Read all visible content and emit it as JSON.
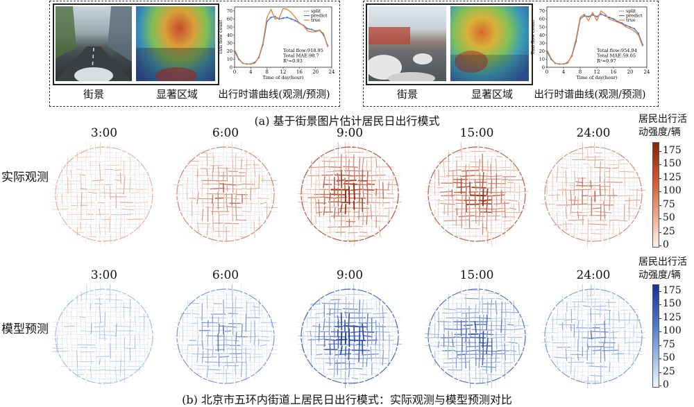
{
  "panel_a": {
    "caption": "(a) 基于街景图片估计居民日出行模式",
    "labels": {
      "street": "街景",
      "salient": "显著区域",
      "curve": "出行时谱曲线(观测/预测)"
    },
    "charts": [
      {
        "type": "line",
        "xlabel": "Time of day(hour)",
        "ylabel": "Taxi flow count",
        "xticks": [
          0,
          4,
          8,
          12,
          16,
          20,
          24
        ],
        "yticks": [
          0,
          10,
          20,
          30,
          40,
          50,
          60,
          70
        ],
        "xlim": [
          0,
          24
        ],
        "ylim": [
          0,
          75
        ],
        "legend": [
          "split",
          "predict",
          "true"
        ],
        "stats": [
          "Total flow:918.95",
          "Total MAE:98.7",
          "R²=0.93"
        ],
        "chart_data": {
          "type": "line",
          "x": [
            0,
            1,
            2,
            3,
            4,
            5,
            6,
            7,
            8,
            9,
            10,
            11,
            12,
            13,
            14,
            15,
            16,
            17,
            18,
            19,
            20,
            21,
            22,
            23
          ],
          "series": [
            {
              "name": "predict",
              "values": [
                20,
                10,
                5,
                4,
                4,
                6,
                12,
                28,
                57,
                62,
                63,
                60,
                61,
                62,
                60,
                58,
                55,
                52,
                48,
                47,
                45,
                46,
                40,
                27
              ]
            },
            {
              "name": "true",
              "values": [
                22,
                11,
                5,
                4,
                4,
                5,
                13,
                30,
                62,
                72,
                60,
                61,
                73,
                72,
                68,
                62,
                55,
                52,
                45,
                44,
                44,
                46,
                42,
                25
              ]
            }
          ]
        }
      },
      {
        "type": "line",
        "xlabel": "Time of day(hour)",
        "ylabel": "Taxi flow count",
        "xticks": [
          0,
          4,
          8,
          12,
          16,
          20,
          24
        ],
        "yticks": [
          0,
          10,
          20,
          30,
          40,
          50,
          60,
          70
        ],
        "xlim": [
          0,
          24
        ],
        "ylim": [
          0,
          75
        ],
        "legend": [
          "split",
          "predict",
          "true"
        ],
        "stats": [
          "Total flow:954.94",
          "Total MAE:59.05",
          "R²=0.97"
        ],
        "chart_data": {
          "type": "line",
          "x": [
            0,
            1,
            2,
            3,
            4,
            5,
            6,
            7,
            8,
            9,
            10,
            11,
            12,
            13,
            14,
            15,
            16,
            17,
            18,
            19,
            20,
            21,
            22,
            23
          ],
          "series": [
            {
              "name": "predict",
              "values": [
                20,
                10,
                5,
                4,
                4,
                6,
                14,
                32,
                60,
                64,
                63,
                65,
                63,
                66,
                64,
                62,
                60,
                57,
                55,
                52,
                50,
                48,
                42,
                28
              ]
            },
            {
              "name": "true",
              "values": [
                22,
                11,
                5,
                4,
                4,
                5,
                15,
                35,
                62,
                66,
                58,
                68,
                58,
                70,
                66,
                60,
                58,
                56,
                54,
                50,
                48,
                45,
                40,
                26
              ]
            }
          ]
        }
      }
    ]
  },
  "panel_b": {
    "caption": "(b) 北京市五环内街道上居民日出行模式：实际观测与模型预测对比",
    "times": [
      "3:00",
      "6:00",
      "9:00",
      "15:00",
      "24:00"
    ],
    "intensity": [
      0.25,
      0.55,
      0.95,
      0.85,
      0.5
    ],
    "rows": [
      {
        "label": "实际观测",
        "color_high": "#9e2a10",
        "color_low": "#f4d3c3"
      },
      {
        "label": "模型预测",
        "color_high": "#1f3fa8",
        "color_low": "#c9dcf2"
      }
    ],
    "colorbar": {
      "title_line1": "居民出行活",
      "title_line2": "动强度/辆",
      "ticks": [
        "175",
        "150",
        "125",
        "100",
        "75",
        "50",
        "25",
        "0"
      ]
    }
  }
}
